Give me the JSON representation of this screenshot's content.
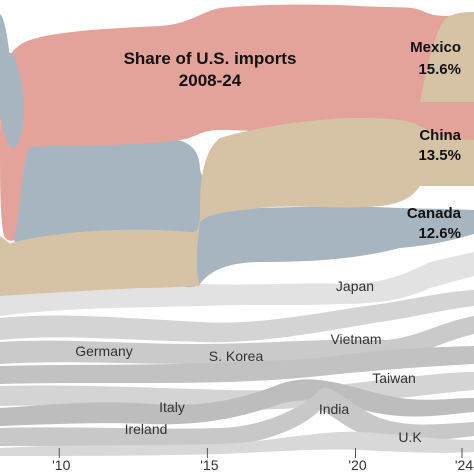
{
  "chart_data": {
    "type": "area",
    "title": "Share of U.S. imports",
    "subtitle": "2008-24",
    "x_range": [
      2008,
      2024
    ],
    "x_ticks": [
      "'10",
      "'15",
      "'20",
      "'24"
    ],
    "x_tick_years": [
      2010,
      2015,
      2020,
      2024
    ],
    "chart_kind": "ranked stream (bump) chart",
    "top_series": [
      {
        "name": "Mexico",
        "value_label": "15.6%",
        "value_2024": 15.6
      },
      {
        "name": "China",
        "value_label": "13.5%",
        "value_2024": 13.5
      },
      {
        "name": "Canada",
        "value_label": "12.6%",
        "value_2024": 12.6
      }
    ],
    "other_series": [
      "Japan",
      "Germany",
      "S. Korea",
      "Vietnam",
      "Taiwan",
      "Italy",
      "India",
      "Ireland",
      "U.K"
    ],
    "colors": {
      "china": "#e3a39a",
      "canada": "#a6b5bf",
      "mexico": "#d6c3a5",
      "gray_light": "#e2e2e2",
      "gray_mid": "#cdcdcd",
      "gray_dark": "#b8b8b8"
    }
  }
}
